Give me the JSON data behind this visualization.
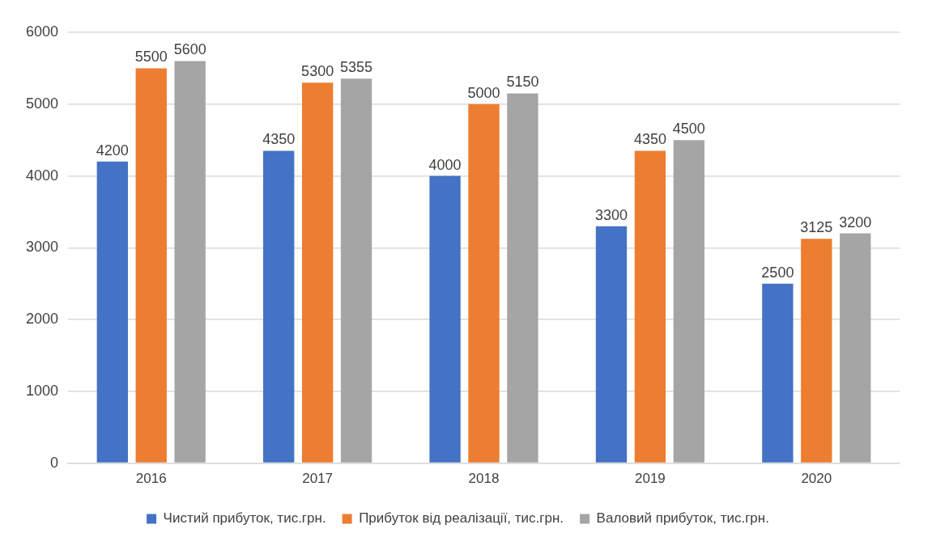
{
  "chart_data": {
    "type": "bar",
    "categories": [
      "2016",
      "2017",
      "2018",
      "2019",
      "2020"
    ],
    "series": [
      {
        "name": "Чистий прибуток, тис.грн.",
        "color": "#4472c4",
        "values": [
          4200,
          4350,
          4000,
          3300,
          2500
        ]
      },
      {
        "name": "Прибуток від реалізації, тис.грн.",
        "color": "#ed7d31",
        "values": [
          5500,
          5300,
          5000,
          4350,
          3125
        ]
      },
      {
        "name": "Валовий прибуток, тис.грн.",
        "color": "#a5a5a5",
        "values": [
          5600,
          5355,
          5150,
          4500,
          3200
        ]
      }
    ],
    "ylim": [
      0,
      6000
    ],
    "yticks": [
      0,
      1000,
      2000,
      3000,
      4000,
      5000,
      6000
    ],
    "grid": "y",
    "legend": "bottom",
    "data_labels": true
  }
}
